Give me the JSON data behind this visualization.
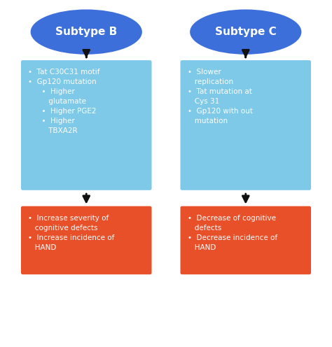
{
  "background_color": "#ffffff",
  "ellipse_color": "#3d6fdb",
  "ellipse_text_color": "#ffffff",
  "blue_box_color": "#7ec8e8",
  "orange_box_color": "#e8502a",
  "box_text_color": "#ffffff",
  "arrow_color": "#111111",
  "left_ellipse_label": "Subtype B",
  "right_ellipse_label": "Subtype C",
  "left_blue_text": "•  Tat C30C31 motif\n•  Gp120 mutation\n      •  Higher\n         glutamate\n      •  Higher PGE2\n      •  Higher\n         TBXA2R",
  "right_blue_text": "•  Slower\n   replication\n•  Tat mutation at\n   Cys 31\n•  Gp120 with out\n   mutation",
  "left_orange_text": "•  Increase severity of\n   cognitive defects\n•  Increase incidence of\n   HAND",
  "right_orange_text": "•  Decrease of cognitive\n   defects\n•  Decrease incidence of\n   HAND",
  "figsize": [
    4.74,
    4.96
  ],
  "dpi": 100
}
